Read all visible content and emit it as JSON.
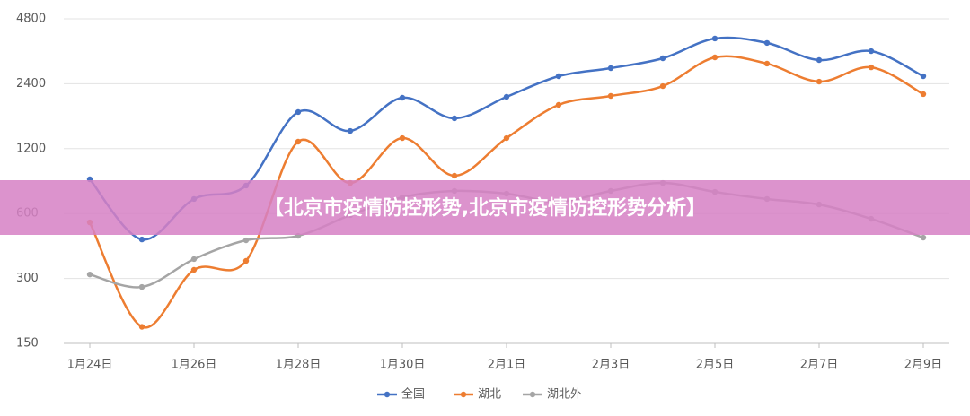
{
  "chart_data": {
    "type": "line",
    "banner": "【北京市疫情防控形势,北京市疫情防控形势分析】",
    "categories": [
      "1月24日",
      null,
      "1月26日",
      null,
      "1月28日",
      null,
      "1月30日",
      null,
      "2月1日",
      null,
      "2月3日",
      null,
      "2月5日",
      null,
      "2月7日",
      null,
      "2月9日"
    ],
    "series": [
      {
        "name": "全国",
        "color": "#4472c4",
        "values": [
          865,
          455,
          701,
          809,
          1774,
          1450,
          2067,
          1659,
          2087,
          2601,
          2835,
          3150,
          3890,
          3710,
          3090,
          3400,
          2600
        ]
      },
      {
        "name": "湖北",
        "color": "#ed7d31",
        "values": [
          546,
          179,
          329,
          362,
          1293,
          832,
          1343,
          899,
          1343,
          1915,
          2107,
          2340,
          3180,
          2975,
          2455,
          2860,
          2148
        ]
      },
      {
        "name": "湖北外",
        "color": "#a5a5a5",
        "values": [
          313,
          274,
          369,
          451,
          473,
          590,
          714,
          764,
          742,
          681,
          764,
          832,
          756,
          701,
          661,
          567,
          464
        ]
      }
    ],
    "ylim": [
      150,
      4800
    ],
    "yticks": [
      150,
      300,
      600,
      1200,
      2400,
      4800
    ],
    "yscale": "log",
    "grid": true
  }
}
